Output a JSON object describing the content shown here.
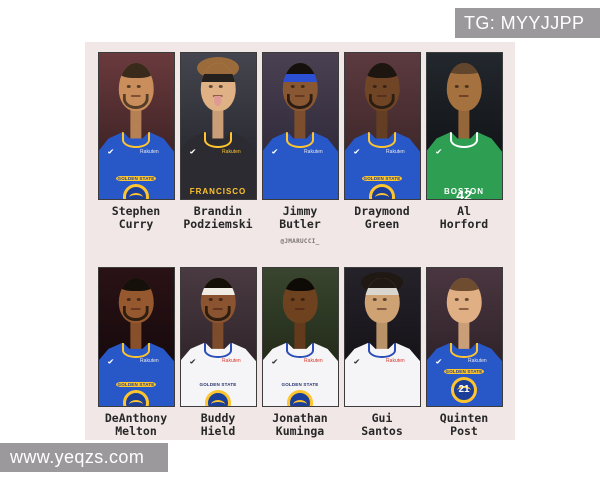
{
  "overlays": {
    "tg_label": "TG: MYYJJPP",
    "site_label": "www.yeqzs.com",
    "box_color": "#9b999c",
    "text_color": "#ffffff"
  },
  "poster": {
    "credit": "@JMARUCCI_",
    "background": "#f0e7e6",
    "name_color": "#272727",
    "team_blue": "#2857c8",
    "team_gold": "#ffc52f"
  },
  "players": [
    {
      "first": "Stephen",
      "last": "Curry",
      "jersey_label": "",
      "jersey_number": "",
      "sponsor": "Rakuten",
      "logo": true,
      "logo_text": "GOLDEN STATE",
      "logo_pos": "low",
      "hair_style": "short",
      "beard": true,
      "tongue": false,
      "style": {
        "bg1": "#6a3a3d",
        "bg2": "#2e1a1c",
        "skin": "#c98e5c",
        "hair": "#3a2a1c",
        "jersey": "#2857c8",
        "trim": "#ffc52f",
        "sponsor-color": "#e8e8ee",
        "logo-arc": "#1b3e99",
        "logo-arc-bg": "#ffc52f"
      }
    },
    {
      "first": "Brandin",
      "last": "Podziemski",
      "jersey_label": "FRANCISCO",
      "jersey_number": "",
      "sponsor": "Rakuten",
      "logo": false,
      "logo_text": "",
      "logo_pos": "low",
      "hair_style": "curly",
      "beard": false,
      "tongue": true,
      "style": {
        "bg1": "#44454e",
        "bg2": "#1f2026",
        "skin": "#e0b184",
        "hair": "#9c6b3c",
        "jersey": "#2b2b31",
        "trim": "#ffc52f",
        "headband": "#23201e",
        "label-color": "#ffc52f",
        "sponsor-color": "#ffc52f"
      }
    },
    {
      "first": "Jimmy",
      "last": "Butler",
      "jersey_label": "",
      "jersey_number": "",
      "sponsor": "Rakuten",
      "logo": false,
      "logo_text": "",
      "logo_pos": "low",
      "hair_style": "short",
      "beard": true,
      "tongue": false,
      "style": {
        "bg1": "#4a4152",
        "bg2": "#262130",
        "skin": "#8a5733",
        "hair": "#15100c",
        "jersey": "#2857c8",
        "trim": "#ffc52f",
        "headband": "#2b50d4",
        "sponsor-color": "#e8e8ee"
      }
    },
    {
      "first": "Draymond",
      "last": "Green",
      "jersey_label": "",
      "jersey_number": "",
      "sponsor": "Rakuten",
      "logo": true,
      "logo_text": "GOLDEN STATE",
      "logo_pos": "low",
      "hair_style": "short",
      "beard": true,
      "tongue": false,
      "style": {
        "bg1": "#5c3a40",
        "bg2": "#33201f",
        "skin": "#6f4526",
        "hair": "#1c1510",
        "jersey": "#2857c8",
        "trim": "#ffc52f",
        "sponsor-color": "#e8e8ee",
        "logo-arc": "#1b3e99",
        "logo-arc-bg": "#ffc52f"
      }
    },
    {
      "first": "Al",
      "last": "Horford",
      "jersey_label": "BOSTON",
      "jersey_number": "42",
      "sponsor": "",
      "logo": false,
      "logo_text": "",
      "logo_pos": "low",
      "hair_style": "bald",
      "beard": false,
      "tongue": false,
      "style": {
        "bg1": "#23282e",
        "bg2": "#0a0c0e",
        "skin": "#a5713f",
        "hair": "#332a22",
        "jersey": "#2d9e52",
        "trim": "#ffffff",
        "label-color": "#ffffff"
      }
    },
    {
      "first": "DeAnthony",
      "last": "Melton",
      "jersey_label": "",
      "jersey_number": "",
      "sponsor": "Rakuten",
      "logo": true,
      "logo_text": "GOLDEN STATE",
      "logo_pos": "low",
      "hair_style": "short",
      "beard": true,
      "tongue": false,
      "style": {
        "bg1": "#2a1216",
        "bg2": "#0e0608",
        "skin": "#96592f",
        "hair": "#151009",
        "jersey": "#2857c8",
        "trim": "#ffc52f",
        "sponsor-color": "#e8e8ee",
        "logo-arc": "#1b3e99",
        "logo-arc-bg": "#ffc52f"
      }
    },
    {
      "first": "Buddy",
      "last": "Hield",
      "jersey_label": "",
      "jersey_number": "",
      "sponsor": "Rakuten",
      "logo": true,
      "logo_text": "GOLDEN STATE",
      "logo_pos": "low",
      "hair_style": "short",
      "beard": true,
      "tongue": false,
      "style": {
        "bg1": "#4a3a42",
        "bg2": "#241b20",
        "skin": "#8a5431",
        "hair": "#141008",
        "jersey": "#f5f4f6",
        "trim": "#2a4db8",
        "headband": "#efece4",
        "sponsor-color": "#d6392f",
        "swoosh": "#333333",
        "logo-arc": "#23306e"
      }
    },
    {
      "first": "Jonathan",
      "last": "Kuminga",
      "jersey_label": "",
      "jersey_number": "",
      "sponsor": "Rakuten",
      "logo": true,
      "logo_text": "GOLDEN STATE",
      "logo_pos": "low",
      "hair_style": "short",
      "beard": false,
      "tongue": false,
      "style": {
        "bg1": "#39452f",
        "bg2": "#18200f",
        "skin": "#6e421f",
        "hair": "#0e0b07",
        "jersey": "#f5f4f6",
        "trim": "#2a4db8",
        "sponsor-color": "#d6392f",
        "swoosh": "#333333",
        "logo-arc": "#23306e"
      }
    },
    {
      "first": "Gui",
      "last": "Santos",
      "jersey_label": "",
      "jersey_number": "",
      "sponsor": "Rakuten",
      "logo": false,
      "logo_text": "",
      "logo_pos": "low",
      "hair_style": "curly",
      "beard": false,
      "tongue": false,
      "style": {
        "bg1": "#26222a",
        "bg2": "#0e0c10",
        "skin": "#cfa274",
        "hair": "#201813",
        "jersey": "#f5f4f6",
        "trim": "#2a4db8",
        "headband": "#d9d6cf",
        "sponsor-color": "#d6392f",
        "swoosh": "#333333"
      }
    },
    {
      "first": "Quinten",
      "last": "Post",
      "jersey_label": "",
      "jersey_number": "21",
      "sponsor": "Rakuten",
      "logo": true,
      "logo_text": "GOLDEN STATE",
      "logo_pos": "high",
      "hair_style": "short",
      "beard": false,
      "tongue": false,
      "style": {
        "bg1": "#4a3640",
        "bg2": "#251a20",
        "skin": "#e0af84",
        "hair": "#6d4c30",
        "jersey": "#2857c8",
        "trim": "#ffc52f",
        "sponsor-color": "#e8e8ee",
        "logo-arc": "#1b3e99",
        "logo-arc-bg": "#ffc52f"
      }
    }
  ]
}
